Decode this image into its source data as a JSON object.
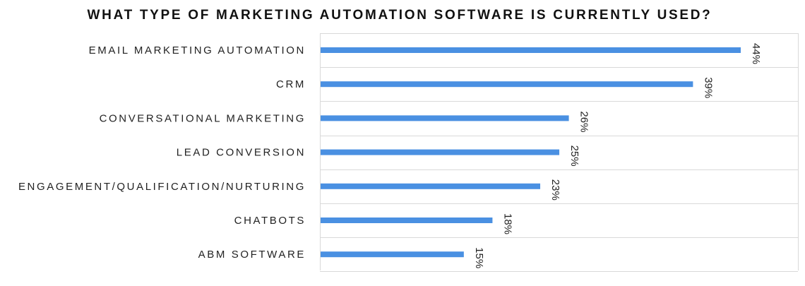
{
  "chart_data": {
    "type": "bar",
    "orientation": "horizontal",
    "title": "WHAT TYPE OF MARKETING AUTOMATION SOFTWARE IS CURRENTLY USED?",
    "xlabel": "",
    "ylabel": "",
    "categories": [
      "EMAIL MARKETING AUTOMATION",
      "CRM",
      "CONVERSATIONAL MARKETING",
      "LEAD CONVERSION",
      "ENGAGEMENT/QUALIFICATION/NURTURING",
      "CHATBOTS",
      "ABM SOFTWARE"
    ],
    "values": [
      44,
      39,
      26,
      25,
      23,
      18,
      15
    ],
    "data_labels": [
      "44%",
      "39%",
      "26%",
      "25%",
      "23%",
      "18%",
      "15%"
    ],
    "xlim": [
      0,
      44
    ],
    "bar_color": "#4A90E2",
    "grid": "horizontal separators",
    "legend": "none"
  }
}
